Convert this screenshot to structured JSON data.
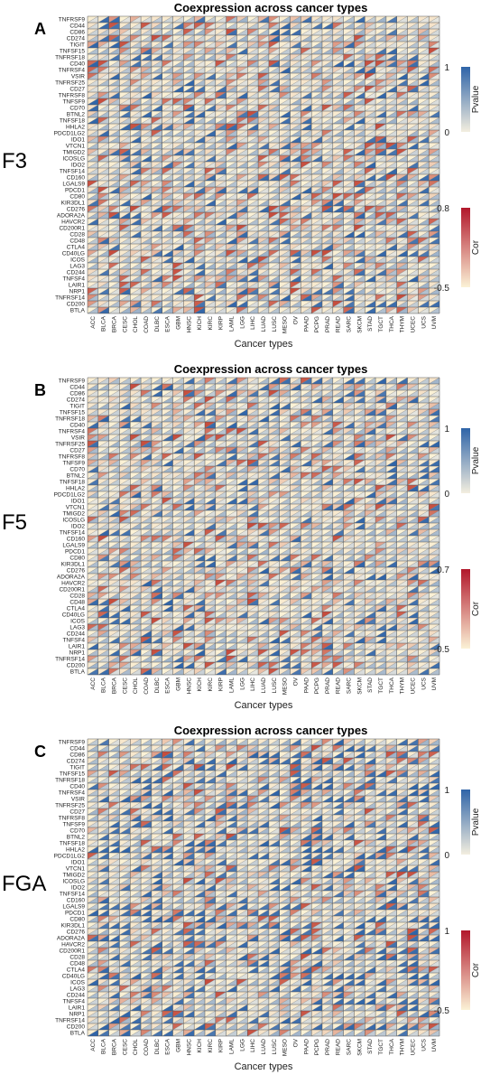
{
  "chart_data": [
    {
      "type": "heatmap",
      "panel_label": "A",
      "gene": "F3",
      "title": "Coexpression across cancer types",
      "xlabel": "Cancer types",
      "ylabel": "",
      "legend_pvalue": {
        "title": "Pvalue",
        "min": "0",
        "max": "1",
        "colors": [
          "#f3eedf",
          "#2f64a8"
        ]
      },
      "legend_cor": {
        "title": "Cor",
        "min": "-0.5",
        "max": "0.8",
        "colors": [
          "#fbf2d6",
          "#b2182b"
        ]
      },
      "seed": 11,
      "red_bias": 0.45,
      "blue_bias": 0.35
    },
    {
      "type": "heatmap",
      "panel_label": "B",
      "gene": "F5",
      "title": "Coexpression across cancer types",
      "xlabel": "Cancer types",
      "ylabel": "",
      "legend_pvalue": {
        "title": "Pvalue",
        "min": "0",
        "max": "1",
        "colors": [
          "#f3eedf",
          "#2f64a8"
        ]
      },
      "legend_cor": {
        "title": "Cor",
        "min": "-0.5",
        "max": "0.7",
        "colors": [
          "#fbf2d6",
          "#b2182b"
        ]
      },
      "seed": 23,
      "red_bias": 0.5,
      "blue_bias": 0.3
    },
    {
      "type": "heatmap",
      "panel_label": "C",
      "gene": "FGA",
      "title": "Coexpression across cancer types",
      "xlabel": "Cancer types",
      "ylabel": "",
      "legend_pvalue": {
        "title": "Pvalue",
        "min": "0",
        "max": "1",
        "colors": [
          "#f3eedf",
          "#2f64a8"
        ]
      },
      "legend_cor": {
        "title": "Cor",
        "min": "-0.5",
        "max": "1",
        "colors": [
          "#fbf2d6",
          "#b2182b"
        ]
      },
      "seed": 37,
      "red_bias": 0.3,
      "blue_bias": 0.55
    }
  ],
  "rows": [
    "TNFRSF9",
    "CD44",
    "CD86",
    "CD274",
    "TIGIT",
    "TNFSF15",
    "TNFRSF18",
    "CD40",
    "TNFRSF4",
    "VSIR",
    "TNFRSF25",
    "CD27",
    "TNFRSF8",
    "TNFSF9",
    "CD70",
    "BTNL2",
    "TNFSF18",
    "HHLA2",
    "PDCD1LG2",
    "IDO1",
    "VTCN1",
    "TMIGD2",
    "ICOSLG",
    "IDO2",
    "TNFSF14",
    "CD160",
    "LGALS9",
    "PDCD1",
    "CD80",
    "KIR3DL1",
    "CD276",
    "ADORA2A",
    "HAVCR2",
    "CD200R1",
    "CD28",
    "CD48",
    "CTLA4",
    "CD40LG",
    "ICOS",
    "LAG3",
    "CD244",
    "TNFSF4",
    "LAIR1",
    "NRP1",
    "TNFRSF14",
    "CD200",
    "BTLA"
  ],
  "columns": [
    "ACC",
    "BLCA",
    "BRCA",
    "CESC",
    "CHOL",
    "COAD",
    "DLBC",
    "ESCA",
    "GBM",
    "HNSC",
    "KICH",
    "KIRC",
    "KIRP",
    "LAML",
    "LGG",
    "LIHC",
    "LUAD",
    "LUSC",
    "MESO",
    "OV",
    "PAAD",
    "PCPG",
    "PRAD",
    "READ",
    "SARC",
    "SKCM",
    "STAD",
    "TGCT",
    "THCA",
    "THYM",
    "UCEC",
    "UCS",
    "UVM"
  ]
}
